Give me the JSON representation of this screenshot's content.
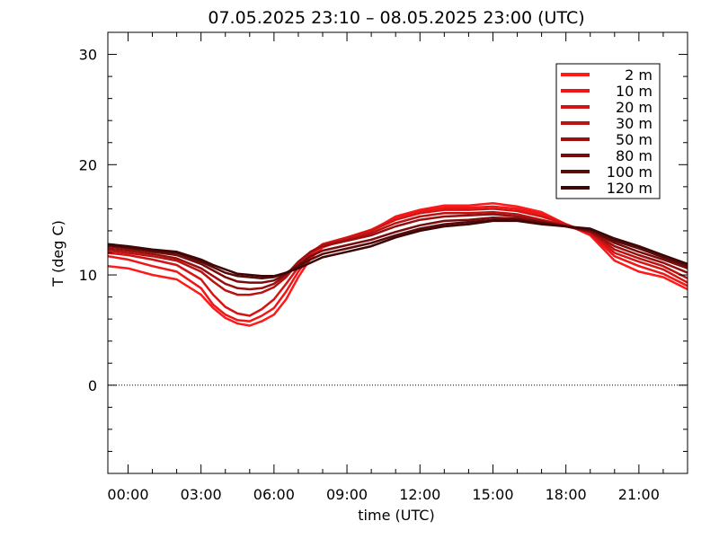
{
  "chart_data": {
    "type": "line",
    "title": "07.05.2025 23:10 – 08.05.2025 23:00 (UTC)",
    "xlabel": "time (UTC)",
    "ylabel": "T (deg C)",
    "xlim": [
      23.17,
      47.0
    ],
    "ylim": [
      -8,
      32
    ],
    "xticks": [
      {
        "v": 24,
        "label": "00:00"
      },
      {
        "v": 27,
        "label": "03:00"
      },
      {
        "v": 30,
        "label": "06:00"
      },
      {
        "v": 33,
        "label": "09:00"
      },
      {
        "v": 36,
        "label": "12:00"
      },
      {
        "v": 39,
        "label": "15:00"
      },
      {
        "v": 42,
        "label": "18:00"
      },
      {
        "v": 45,
        "label": "21:00"
      }
    ],
    "yticks": [
      {
        "v": 0,
        "label": "0"
      },
      {
        "v": 10,
        "label": "10"
      },
      {
        "v": 20,
        "label": "20"
      },
      {
        "v": 30,
        "label": "30"
      }
    ],
    "zero_line": true,
    "legend_position": "top-right",
    "time_x": [
      23.17,
      24,
      25,
      26,
      27,
      27.5,
      28,
      28.5,
      29,
      29.5,
      30,
      30.5,
      31,
      31.5,
      32,
      33,
      34,
      35,
      36,
      37,
      38,
      39,
      40,
      41,
      42,
      43,
      44,
      45,
      46,
      47
    ],
    "series": [
      {
        "name": "2 m",
        "color": "#ff1a1a",
        "values": [
          10.8,
          10.6,
          10.0,
          9.6,
          8.2,
          7.0,
          6.1,
          5.6,
          5.4,
          5.8,
          6.4,
          7.8,
          9.8,
          11.5,
          12.5,
          13.3,
          14.0,
          15.3,
          15.9,
          16.3,
          16.3,
          16.5,
          16.2,
          15.7,
          14.6,
          13.6,
          11.3,
          10.3,
          9.8,
          8.7
        ]
      },
      {
        "name": "10 m",
        "color": "#ee1616",
        "values": [
          11.7,
          11.4,
          10.8,
          10.3,
          8.8,
          7.3,
          6.4,
          5.9,
          5.8,
          6.3,
          7.0,
          8.5,
          10.3,
          11.8,
          12.7,
          13.4,
          14.1,
          15.2,
          15.8,
          16.1,
          16.1,
          16.2,
          16.0,
          15.5,
          14.6,
          13.7,
          11.7,
          10.8,
          10.1,
          9.0
        ]
      },
      {
        "name": "20 m",
        "color": "#d41414",
        "values": [
          12.0,
          11.8,
          11.4,
          10.9,
          9.6,
          8.2,
          7.1,
          6.5,
          6.3,
          6.9,
          7.8,
          9.2,
          10.7,
          12.0,
          12.8,
          13.4,
          14.0,
          15.0,
          15.6,
          15.9,
          15.9,
          16.0,
          15.8,
          15.3,
          14.6,
          13.8,
          12.0,
          11.2,
          10.5,
          9.3
        ]
      },
      {
        "name": "30 m",
        "color": "#b81313",
        "values": [
          12.2,
          12.0,
          11.7,
          11.3,
          10.3,
          9.4,
          8.6,
          8.2,
          8.2,
          8.4,
          8.9,
          9.8,
          11.1,
          12.1,
          12.7,
          13.2,
          13.8,
          14.7,
          15.3,
          15.6,
          15.6,
          15.7,
          15.5,
          15.0,
          14.5,
          13.9,
          12.3,
          11.5,
          10.8,
          9.7
        ]
      },
      {
        "name": "50 m",
        "color": "#971010",
        "values": [
          12.4,
          12.2,
          11.9,
          11.5,
          10.6,
          9.9,
          9.2,
          8.8,
          8.7,
          8.8,
          9.2,
          10.0,
          11.2,
          12.1,
          12.6,
          13.1,
          13.6,
          14.4,
          15.0,
          15.3,
          15.4,
          15.5,
          15.3,
          14.9,
          14.4,
          13.9,
          12.6,
          11.8,
          11.1,
          10.2
        ]
      },
      {
        "name": "80 m",
        "color": "#760c0c",
        "values": [
          12.6,
          12.4,
          12.1,
          11.8,
          11.0,
          10.4,
          9.8,
          9.4,
          9.3,
          9.3,
          9.5,
          10.1,
          10.9,
          11.7,
          12.2,
          12.7,
          13.2,
          13.9,
          14.5,
          14.9,
          15.0,
          15.2,
          15.1,
          14.8,
          14.4,
          14.0,
          12.9,
          12.1,
          11.4,
          10.6
        ]
      },
      {
        "name": "100 m",
        "color": "#5a0909",
        "values": [
          12.7,
          12.5,
          12.2,
          12.0,
          11.2,
          10.7,
          10.2,
          9.9,
          9.8,
          9.7,
          9.8,
          10.2,
          10.8,
          11.4,
          11.9,
          12.4,
          12.9,
          13.6,
          14.2,
          14.6,
          14.8,
          15.0,
          15.0,
          14.7,
          14.4,
          14.1,
          13.1,
          12.4,
          11.6,
          10.8
        ]
      },
      {
        "name": "120 m",
        "color": "#3d0606",
        "values": [
          12.8,
          12.6,
          12.3,
          12.1,
          11.4,
          10.9,
          10.5,
          10.1,
          10.0,
          9.9,
          9.9,
          10.2,
          10.6,
          11.1,
          11.6,
          12.1,
          12.6,
          13.4,
          14.0,
          14.4,
          14.6,
          14.9,
          14.9,
          14.6,
          14.4,
          14.2,
          13.3,
          12.6,
          11.8,
          11.0
        ]
      }
    ]
  }
}
